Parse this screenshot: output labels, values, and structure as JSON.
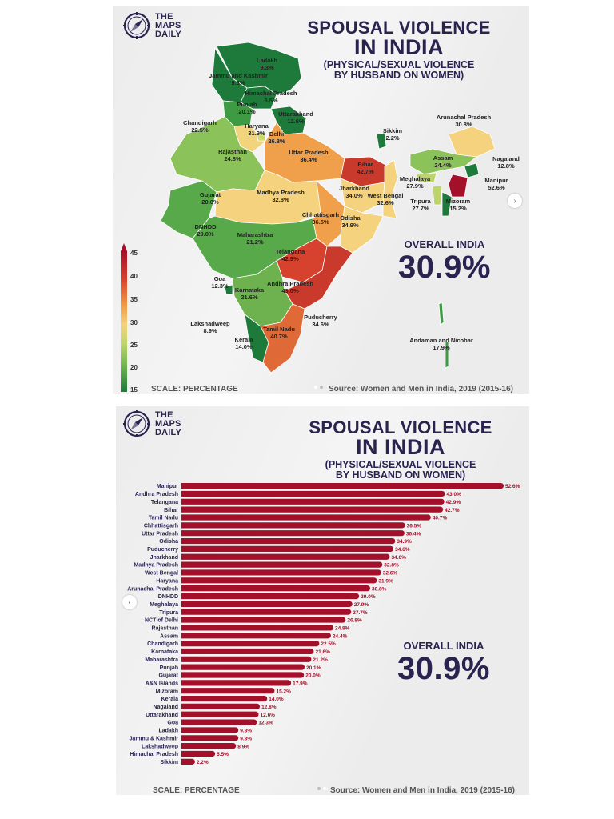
{
  "brand": {
    "line1": "THE",
    "line2": "MAPS",
    "line3": "DAILY"
  },
  "title": {
    "line1": "SPOUSAL VIOLENCE",
    "line2": "IN INDIA",
    "sub1": "(PHYSICAL/SEXUAL VIOLENCE",
    "sub2": "BY HUSBAND ON WOMEN)"
  },
  "overall": {
    "label": "OVERALL INDIA",
    "value": "30.9%"
  },
  "footer": {
    "scale": "SCALE: PERCENTAGE",
    "source": "Source: Women and Men in India, 2019 (2015-16)"
  },
  "legend": {
    "ticks": [
      "45",
      "40",
      "35",
      "30",
      "25",
      "20",
      "15"
    ]
  },
  "colors": {
    "bar": "#a4102a",
    "title": "#2a2350",
    "panel": "#ececec"
  },
  "icons": {
    "logo": "compass-icon",
    "next": "chevron-right-icon",
    "prev": "chevron-left-icon"
  },
  "map_labels": [
    {
      "name": "Ladakh",
      "value": "9.3%"
    },
    {
      "name": "Jammu and Kashmir",
      "value": "9.3%"
    },
    {
      "name": "Himachal Pradesh",
      "value": "5.5%"
    },
    {
      "name": "Punjab",
      "value": "20.1%"
    },
    {
      "name": "Uttarakhand",
      "value": "12.6%"
    },
    {
      "name": "Chandigarh",
      "value": "22.5%"
    },
    {
      "name": "Haryana",
      "value": "31.9%"
    },
    {
      "name": "Delhi",
      "value": "26.8%"
    },
    {
      "name": "Rajasthan",
      "value": "24.8%"
    },
    {
      "name": "Uttar Pradesh",
      "value": "36.4%"
    },
    {
      "name": "Bihar",
      "value": "42.7%"
    },
    {
      "name": "Sikkim",
      "value": "2.2%"
    },
    {
      "name": "Arunachal Pradesh",
      "value": "30.8%"
    },
    {
      "name": "Assam",
      "value": "24.4%"
    },
    {
      "name": "Nagaland",
      "value": "12.8%"
    },
    {
      "name": "Meghalaya",
      "value": "27.9%"
    },
    {
      "name": "Manipur",
      "value": "52.6%"
    },
    {
      "name": "Tripura",
      "value": "27.7%"
    },
    {
      "name": "Mizoram",
      "value": "15.2%"
    },
    {
      "name": "Gujarat",
      "value": "20.0%"
    },
    {
      "name": "Madhya Pradesh",
      "value": "32.8%"
    },
    {
      "name": "Jharkhand",
      "value": "34.0%"
    },
    {
      "name": "West Bengal",
      "value": "32.6%"
    },
    {
      "name": "DNHDD",
      "value": "29.0%"
    },
    {
      "name": "Chhattisgarh",
      "value": "36.5%"
    },
    {
      "name": "Odisha",
      "value": "34.9%"
    },
    {
      "name": "Maharashtra",
      "value": "21.2%"
    },
    {
      "name": "Telangana",
      "value": "42.9%"
    },
    {
      "name": "Goa",
      "value": "12.3%"
    },
    {
      "name": "Karnataka",
      "value": "21.6%"
    },
    {
      "name": "Andhra Pradesh",
      "value": "43.0%"
    },
    {
      "name": "Lakshadweep",
      "value": "8.9%"
    },
    {
      "name": "Puducherry",
      "value": "34.6%"
    },
    {
      "name": "Tamil Nadu",
      "value": "40.7%"
    },
    {
      "name": "Kerala",
      "value": "14.0%"
    },
    {
      "name": "Andaman and Nicobar",
      "value": "17.9%"
    }
  ],
  "chart_data": {
    "type": "bar",
    "orientation": "horizontal",
    "categories": [
      "Manipur",
      "Andhra Pradesh",
      "Telangana",
      "Bihar",
      "Tamil Nadu",
      "Chhattisgarh",
      "Uttar Pradesh",
      "Odisha",
      "Puducherry",
      "Jharkhand",
      "Madhya Pradesh",
      "West Bengal",
      "Haryana",
      "Arunachal Pradesh",
      "DNHDD",
      "Meghalaya",
      "Tripura",
      "NCT of Delhi",
      "Rajasthan",
      "Assam",
      "Chandigarh",
      "Karnataka",
      "Maharashtra",
      "Punjab",
      "Gujarat",
      "A&N Islands",
      "Mizoram",
      "Kerala",
      "Nagaland",
      "Uttarakhand",
      "Goa",
      "Ladakh",
      "Jammu & Kashmir",
      "Lakshadweep",
      "Himachal Pradesh",
      "Sikkim"
    ],
    "values": [
      52.6,
      43.0,
      42.9,
      42.7,
      40.7,
      36.5,
      36.4,
      34.9,
      34.6,
      34.0,
      32.8,
      32.6,
      31.9,
      30.8,
      29.0,
      27.9,
      27.7,
      26.8,
      24.8,
      24.4,
      22.5,
      21.6,
      21.2,
      20.1,
      20.0,
      17.9,
      15.2,
      14.0,
      12.8,
      12.6,
      12.3,
      9.3,
      9.3,
      8.9,
      5.5,
      2.2
    ],
    "labels": [
      "52.6%",
      "43.0%",
      "42.9%",
      "42.7%",
      "40.7%",
      "36.5%",
      "36.4%",
      "34.9%",
      "34.6%",
      "34.0%",
      "32.8%",
      "32.6%",
      "31.9%",
      "30.8%",
      "29.0%",
      "27.9%",
      "27.7%",
      "26.8%",
      "24.8%",
      "24.4%",
      "22.5%",
      "21.6%",
      "21.2%",
      "20.1%",
      "20.0%",
      "17.9%",
      "15.2%",
      "14.0%",
      "12.8%",
      "12.6%",
      "12.3%",
      "9.3%",
      "9.3%",
      "8.9%",
      "5.5%",
      "2.2%"
    ],
    "title": "SPOUSAL VIOLENCE IN INDIA",
    "color": "#a4102a",
    "grid": false
  }
}
